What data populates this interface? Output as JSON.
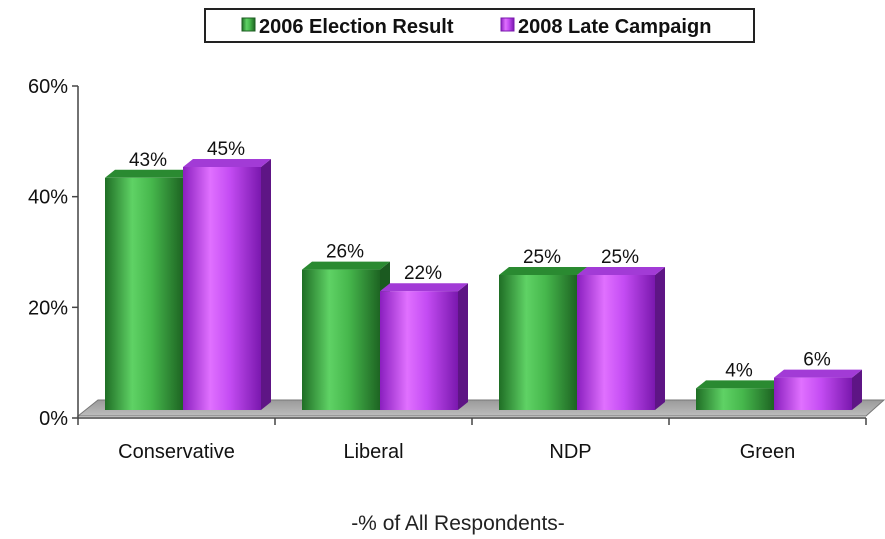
{
  "chart_data": {
    "type": "bar",
    "title": "",
    "xlabel": "-% of All Respondents-",
    "ylabel": "",
    "categories": [
      "Conservative",
      "Liberal",
      "NDP",
      "Green"
    ],
    "series": [
      {
        "name": "2006 Election Result",
        "values": [
          43,
          26,
          25,
          4
        ],
        "labels": [
          "43%",
          "26%",
          "25%",
          "4%"
        ],
        "color": "#3fae45"
      },
      {
        "name": "2008 Late Campaign",
        "values": [
          45,
          22,
          25,
          6
        ],
        "labels": [
          "45%",
          "22%",
          "25%",
          "6%"
        ],
        "color": "#c03cf5"
      }
    ],
    "ylim": [
      0,
      60
    ],
    "yticks": [
      0,
      20,
      40,
      60
    ],
    "ytick_labels": [
      "0%",
      "20%",
      "40%",
      "60%"
    ],
    "legend_position": "top-center",
    "grid": false,
    "style": "3d"
  }
}
